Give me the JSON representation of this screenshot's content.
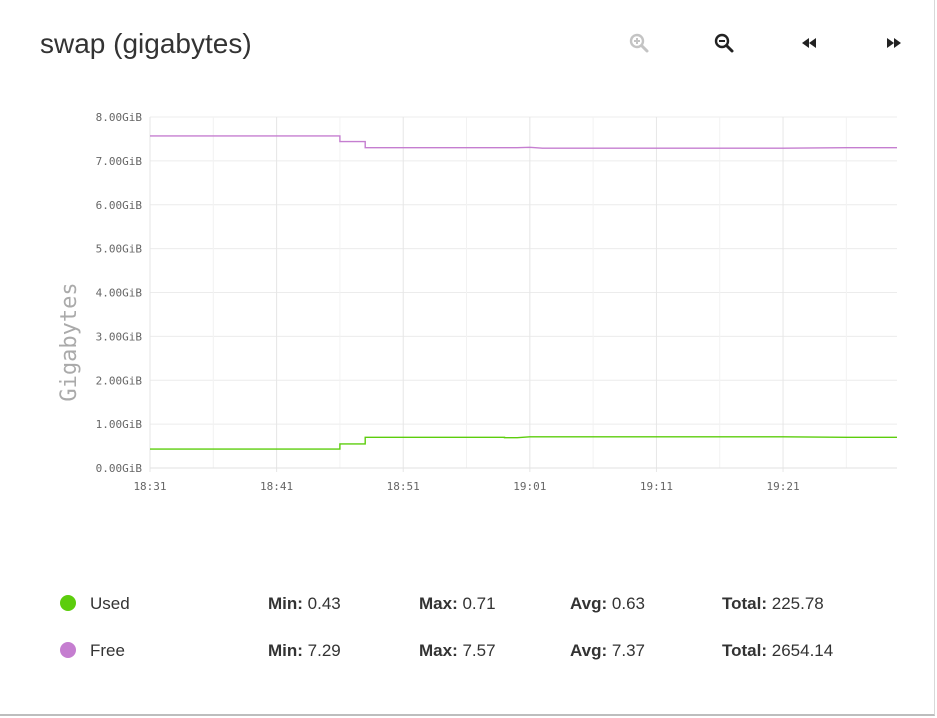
{
  "header": {
    "title": "swap (gigabytes)"
  },
  "toolbar": {
    "buttons": [
      {
        "name": "zoom-in-button",
        "icon": "zoom-in-icon",
        "enabled": false
      },
      {
        "name": "zoom-out-button",
        "icon": "zoom-out-icon",
        "enabled": true
      },
      {
        "name": "pan-back-button",
        "icon": "rewind-icon",
        "enabled": true
      },
      {
        "name": "pan-forward-button",
        "icon": "fast-forward-icon",
        "enabled": true
      }
    ]
  },
  "chart_data": {
    "type": "line",
    "ylabel": "Gigabytes",
    "ylim": [
      0,
      8
    ],
    "yticks": [
      {
        "value": 0,
        "label": "0.00GiB"
      },
      {
        "value": 1,
        "label": "1.00GiB"
      },
      {
        "value": 2,
        "label": "2.00GiB"
      },
      {
        "value": 3,
        "label": "3.00GiB"
      },
      {
        "value": 4,
        "label": "4.00GiB"
      },
      {
        "value": 5,
        "label": "5.00GiB"
      },
      {
        "value": 6,
        "label": "6.00GiB"
      },
      {
        "value": 7,
        "label": "7.00GiB"
      },
      {
        "value": 8,
        "label": "8.00GiB"
      }
    ],
    "xlim": [
      "18:31",
      "19:30"
    ],
    "xticks": [
      "18:31",
      "18:41",
      "18:51",
      "19:01",
      "19:11",
      "19:21"
    ],
    "grid": true,
    "series": [
      {
        "name": "Used",
        "color": "#5ccd0c",
        "points": [
          [
            "18:31",
            0.43
          ],
          [
            "18:46",
            0.43
          ],
          [
            "18:46",
            0.55
          ],
          [
            "18:48",
            0.55
          ],
          [
            "18:48",
            0.7
          ],
          [
            "18:59",
            0.7
          ],
          [
            "18:59",
            0.69
          ],
          [
            "19:00",
            0.69
          ],
          [
            "19:01",
            0.71
          ],
          [
            "19:21",
            0.71
          ],
          [
            "19:26",
            0.7
          ],
          [
            "19:30",
            0.7
          ]
        ]
      },
      {
        "name": "Free",
        "color": "#c57ed0",
        "points": [
          [
            "18:31",
            7.57
          ],
          [
            "18:46",
            7.57
          ],
          [
            "18:46",
            7.44
          ],
          [
            "18:48",
            7.44
          ],
          [
            "18:48",
            7.3
          ],
          [
            "19:00",
            7.3
          ],
          [
            "19:01",
            7.31
          ],
          [
            "19:02",
            7.29
          ],
          [
            "19:21",
            7.29
          ],
          [
            "19:26",
            7.3
          ],
          [
            "19:30",
            7.3
          ]
        ]
      }
    ]
  },
  "legend": {
    "labels": {
      "min": "Min:",
      "max": "Max:",
      "avg": "Avg:",
      "total": "Total:"
    },
    "rows": [
      {
        "name": "Used",
        "color": "#5ccd0c",
        "min": "0.43",
        "max": "0.71",
        "avg": "0.63",
        "total": "225.78"
      },
      {
        "name": "Free",
        "color": "#c57ed0",
        "min": "7.29",
        "max": "7.57",
        "avg": "7.37",
        "total": "2654.14"
      }
    ]
  }
}
